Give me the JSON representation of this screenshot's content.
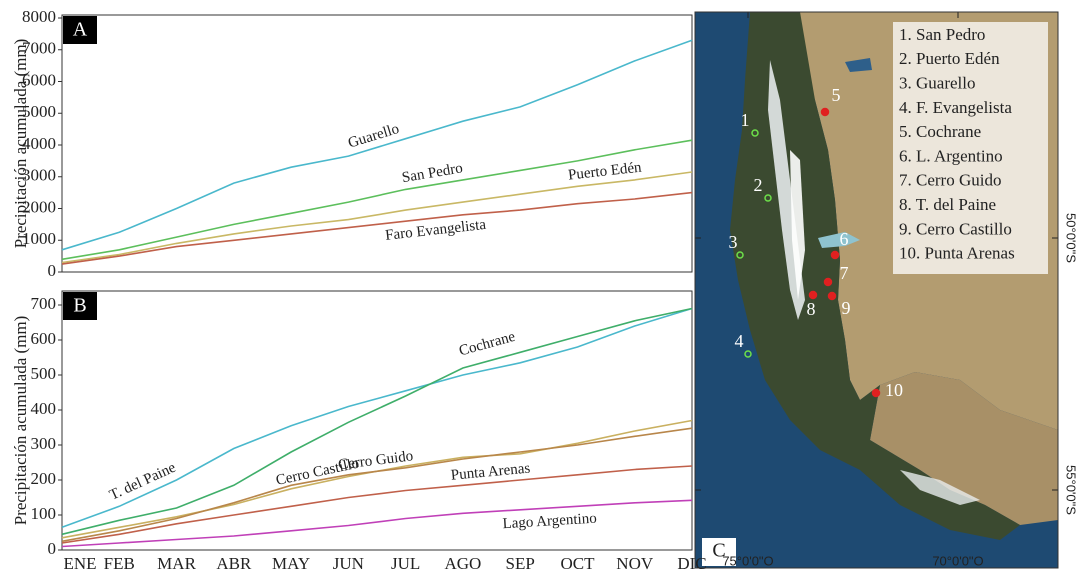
{
  "chart_data": [
    {
      "type": "line",
      "panel_label": "A",
      "y_label": "Precipitación acumulada (mm)",
      "ylim": [
        0,
        8000
      ],
      "yticks": [
        0,
        1000,
        2000,
        3000,
        4000,
        5000,
        6000,
        7000,
        8000
      ],
      "series": [
        {
          "name": "Guarello",
          "color": "#4ab8cc",
          "values": [
            700,
            1250,
            2000,
            2800,
            3300,
            3650,
            4200,
            4750,
            5200,
            5900,
            6650,
            7300
          ]
        },
        {
          "name": "San Pedro",
          "color": "#5cbf5c",
          "values": [
            400,
            700,
            1100,
            1500,
            1850,
            2200,
            2600,
            2900,
            3200,
            3500,
            3850,
            4150
          ]
        },
        {
          "name": "Puerto Edén",
          "color": "#c9b865",
          "values": [
            300,
            550,
            900,
            1200,
            1450,
            1650,
            1950,
            2200,
            2450,
            2700,
            2900,
            3150
          ]
        },
        {
          "name": "Faro Evangelista",
          "color": "#c0604a",
          "values": [
            250,
            500,
            800,
            1000,
            1200,
            1400,
            1600,
            1800,
            1950,
            2150,
            2300,
            2500
          ]
        }
      ]
    },
    {
      "type": "line",
      "panel_label": "B",
      "y_label": "Precipitación acumulada (mm)",
      "categories": [
        "ENE",
        "FEB",
        "MAR",
        "ABR",
        "MAY",
        "JUN",
        "JUL",
        "AGO",
        "SEP",
        "OCT",
        "NOV",
        "DIC"
      ],
      "ylim": [
        0,
        740
      ],
      "yticks": [
        0,
        100,
        200,
        300,
        400,
        500,
        600,
        700
      ],
      "series": [
        {
          "name": "T. del Paine",
          "color": "#4ab8cc",
          "values": [
            65,
            125,
            200,
            290,
            355,
            410,
            455,
            500,
            535,
            580,
            640,
            690
          ]
        },
        {
          "name": "Cochrane",
          "color": "#3fae6a",
          "values": [
            45,
            85,
            120,
            185,
            280,
            365,
            440,
            520,
            565,
            610,
            655,
            690
          ]
        },
        {
          "name": "Cerro Castillo",
          "color": "#c9b060",
          "values": [
            35,
            65,
            95,
            130,
            175,
            210,
            240,
            265,
            275,
            305,
            340,
            370
          ]
        },
        {
          "name": "Cerro Guido",
          "color": "#b8864a",
          "values": [
            25,
            55,
            90,
            135,
            185,
            215,
            235,
            260,
            280,
            300,
            325,
            348
          ]
        },
        {
          "name": "Punta Arenas",
          "color": "#c0604a",
          "values": [
            20,
            45,
            75,
            100,
            125,
            150,
            170,
            185,
            200,
            215,
            230,
            240
          ]
        },
        {
          "name": "Lago Argentino",
          "color": "#c040b8",
          "values": [
            10,
            20,
            30,
            40,
            55,
            70,
            90,
            105,
            115,
            125,
            135,
            142
          ]
        }
      ]
    }
  ],
  "map": {
    "panel_label": "C",
    "legend": [
      "1. San Pedro",
      "2. Puerto Edén",
      "3. Guarello",
      "4. F. Evangelista",
      "5. Cochrane",
      "6. L. Argentino",
      "7. Cerro Guido",
      "8. T. del Paine",
      "9. Cerro Castillo",
      "10. Punta Arenas"
    ],
    "points": [
      "1",
      "2",
      "3",
      "4",
      "5",
      "6",
      "7",
      "8",
      "9",
      "10"
    ],
    "lon_labels": [
      "75°0'0\"O",
      "70°0'0\"O"
    ],
    "lat_labels": [
      "50°0'0\"S",
      "55°0'0\"S"
    ]
  }
}
